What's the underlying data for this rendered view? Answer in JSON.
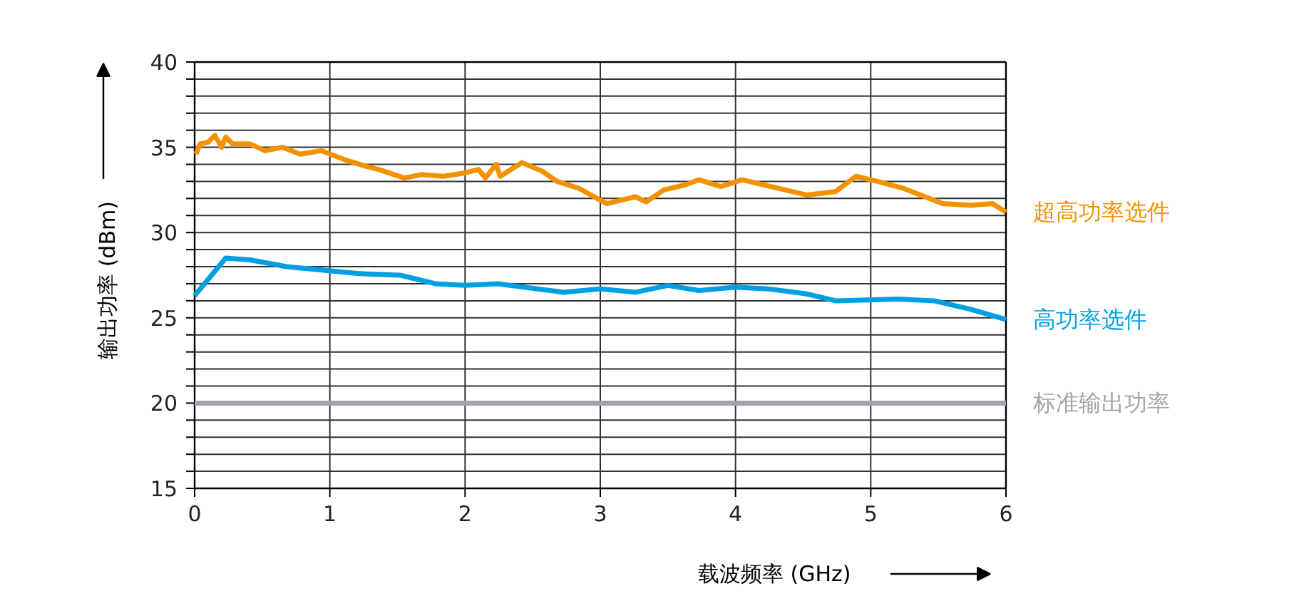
{
  "chart_data": {
    "type": "line",
    "xlabel": "载波频率 (GHz)",
    "ylabel": "输出功率 (dBm)",
    "xlim": [
      0,
      6
    ],
    "ylim": [
      15,
      40
    ],
    "xticks": [
      0,
      1,
      2,
      3,
      4,
      5,
      6
    ],
    "yticks": [
      15,
      {
        "value": 16,
        "label": null
      },
      {
        "value": 17,
        "label": null
      },
      {
        "value": 18,
        "label": null
      },
      {
        "value": 19,
        "label": null
      },
      20,
      {
        "value": 21,
        "label": null
      },
      {
        "value": 22,
        "label": null
      },
      {
        "value": 23,
        "label": null
      },
      {
        "value": 24,
        "label": null
      },
      25,
      {
        "value": 26,
        "label": null
      },
      {
        "value": 27,
        "label": null
      },
      {
        "value": 28,
        "label": null
      },
      {
        "value": 29,
        "label": null
      },
      30,
      {
        "value": 31,
        "label": null
      },
      {
        "value": 32,
        "label": null
      },
      {
        "value": 33,
        "label": null
      },
      {
        "value": 34,
        "label": null
      },
      35,
      {
        "value": 36,
        "label": null
      },
      {
        "value": 37,
        "label": null
      },
      {
        "value": 38,
        "label": null
      },
      {
        "value": 39,
        "label": null
      },
      40
    ],
    "grid": true,
    "legend": false,
    "marker": "none",
    "line_style": "solid",
    "series": [
      {
        "name": "超高功率选件",
        "color": "#f39200",
        "x": [
          0.01,
          0.04,
          0.1,
          0.15,
          0.2,
          0.23,
          0.28,
          0.41,
          0.52,
          0.65,
          0.78,
          0.94,
          1.1,
          1.26,
          1.36,
          1.55,
          1.68,
          1.84,
          2.0,
          2.1,
          2.15,
          2.23,
          2.26,
          2.42,
          2.57,
          2.68,
          2.84,
          3.0,
          3.05,
          3.26,
          3.34,
          3.47,
          3.63,
          3.73,
          3.89,
          4.05,
          4.26,
          4.53,
          4.74,
          4.89,
          5.05,
          5.24,
          5.53,
          5.74,
          5.9,
          6.0
        ],
        "values": [
          34.6,
          35.2,
          35.3,
          35.7,
          35.0,
          35.6,
          35.2,
          35.2,
          34.8,
          35.0,
          34.6,
          34.8,
          34.3,
          33.9,
          33.7,
          33.2,
          33.4,
          33.3,
          33.5,
          33.7,
          33.2,
          34.0,
          33.3,
          34.1,
          33.6,
          33.0,
          32.6,
          31.9,
          31.7,
          32.1,
          31.8,
          32.5,
          32.8,
          33.1,
          32.7,
          33.1,
          32.7,
          32.2,
          32.4,
          33.3,
          33.0,
          32.6,
          31.7,
          31.6,
          31.7,
          31.2
        ]
      },
      {
        "name": "高功率选件",
        "color": "#009fe3",
        "x": [
          0.0,
          0.23,
          0.41,
          0.68,
          1.2,
          1.52,
          1.78,
          2.0,
          2.24,
          2.73,
          3.0,
          3.26,
          3.5,
          3.73,
          4.0,
          4.24,
          4.53,
          4.74,
          5.21,
          5.47,
          5.74,
          6.0
        ],
        "values": [
          26.3,
          28.5,
          28.4,
          28.0,
          27.6,
          27.5,
          27.0,
          26.9,
          27.0,
          26.5,
          26.7,
          26.5,
          26.9,
          26.6,
          26.8,
          26.7,
          26.4,
          26.0,
          26.1,
          26.0,
          25.5,
          24.9
        ]
      },
      {
        "name": "标准输出功率",
        "color": "#a0a4a8",
        "x": [
          0,
          6
        ],
        "values": [
          20,
          20
        ]
      }
    ]
  }
}
